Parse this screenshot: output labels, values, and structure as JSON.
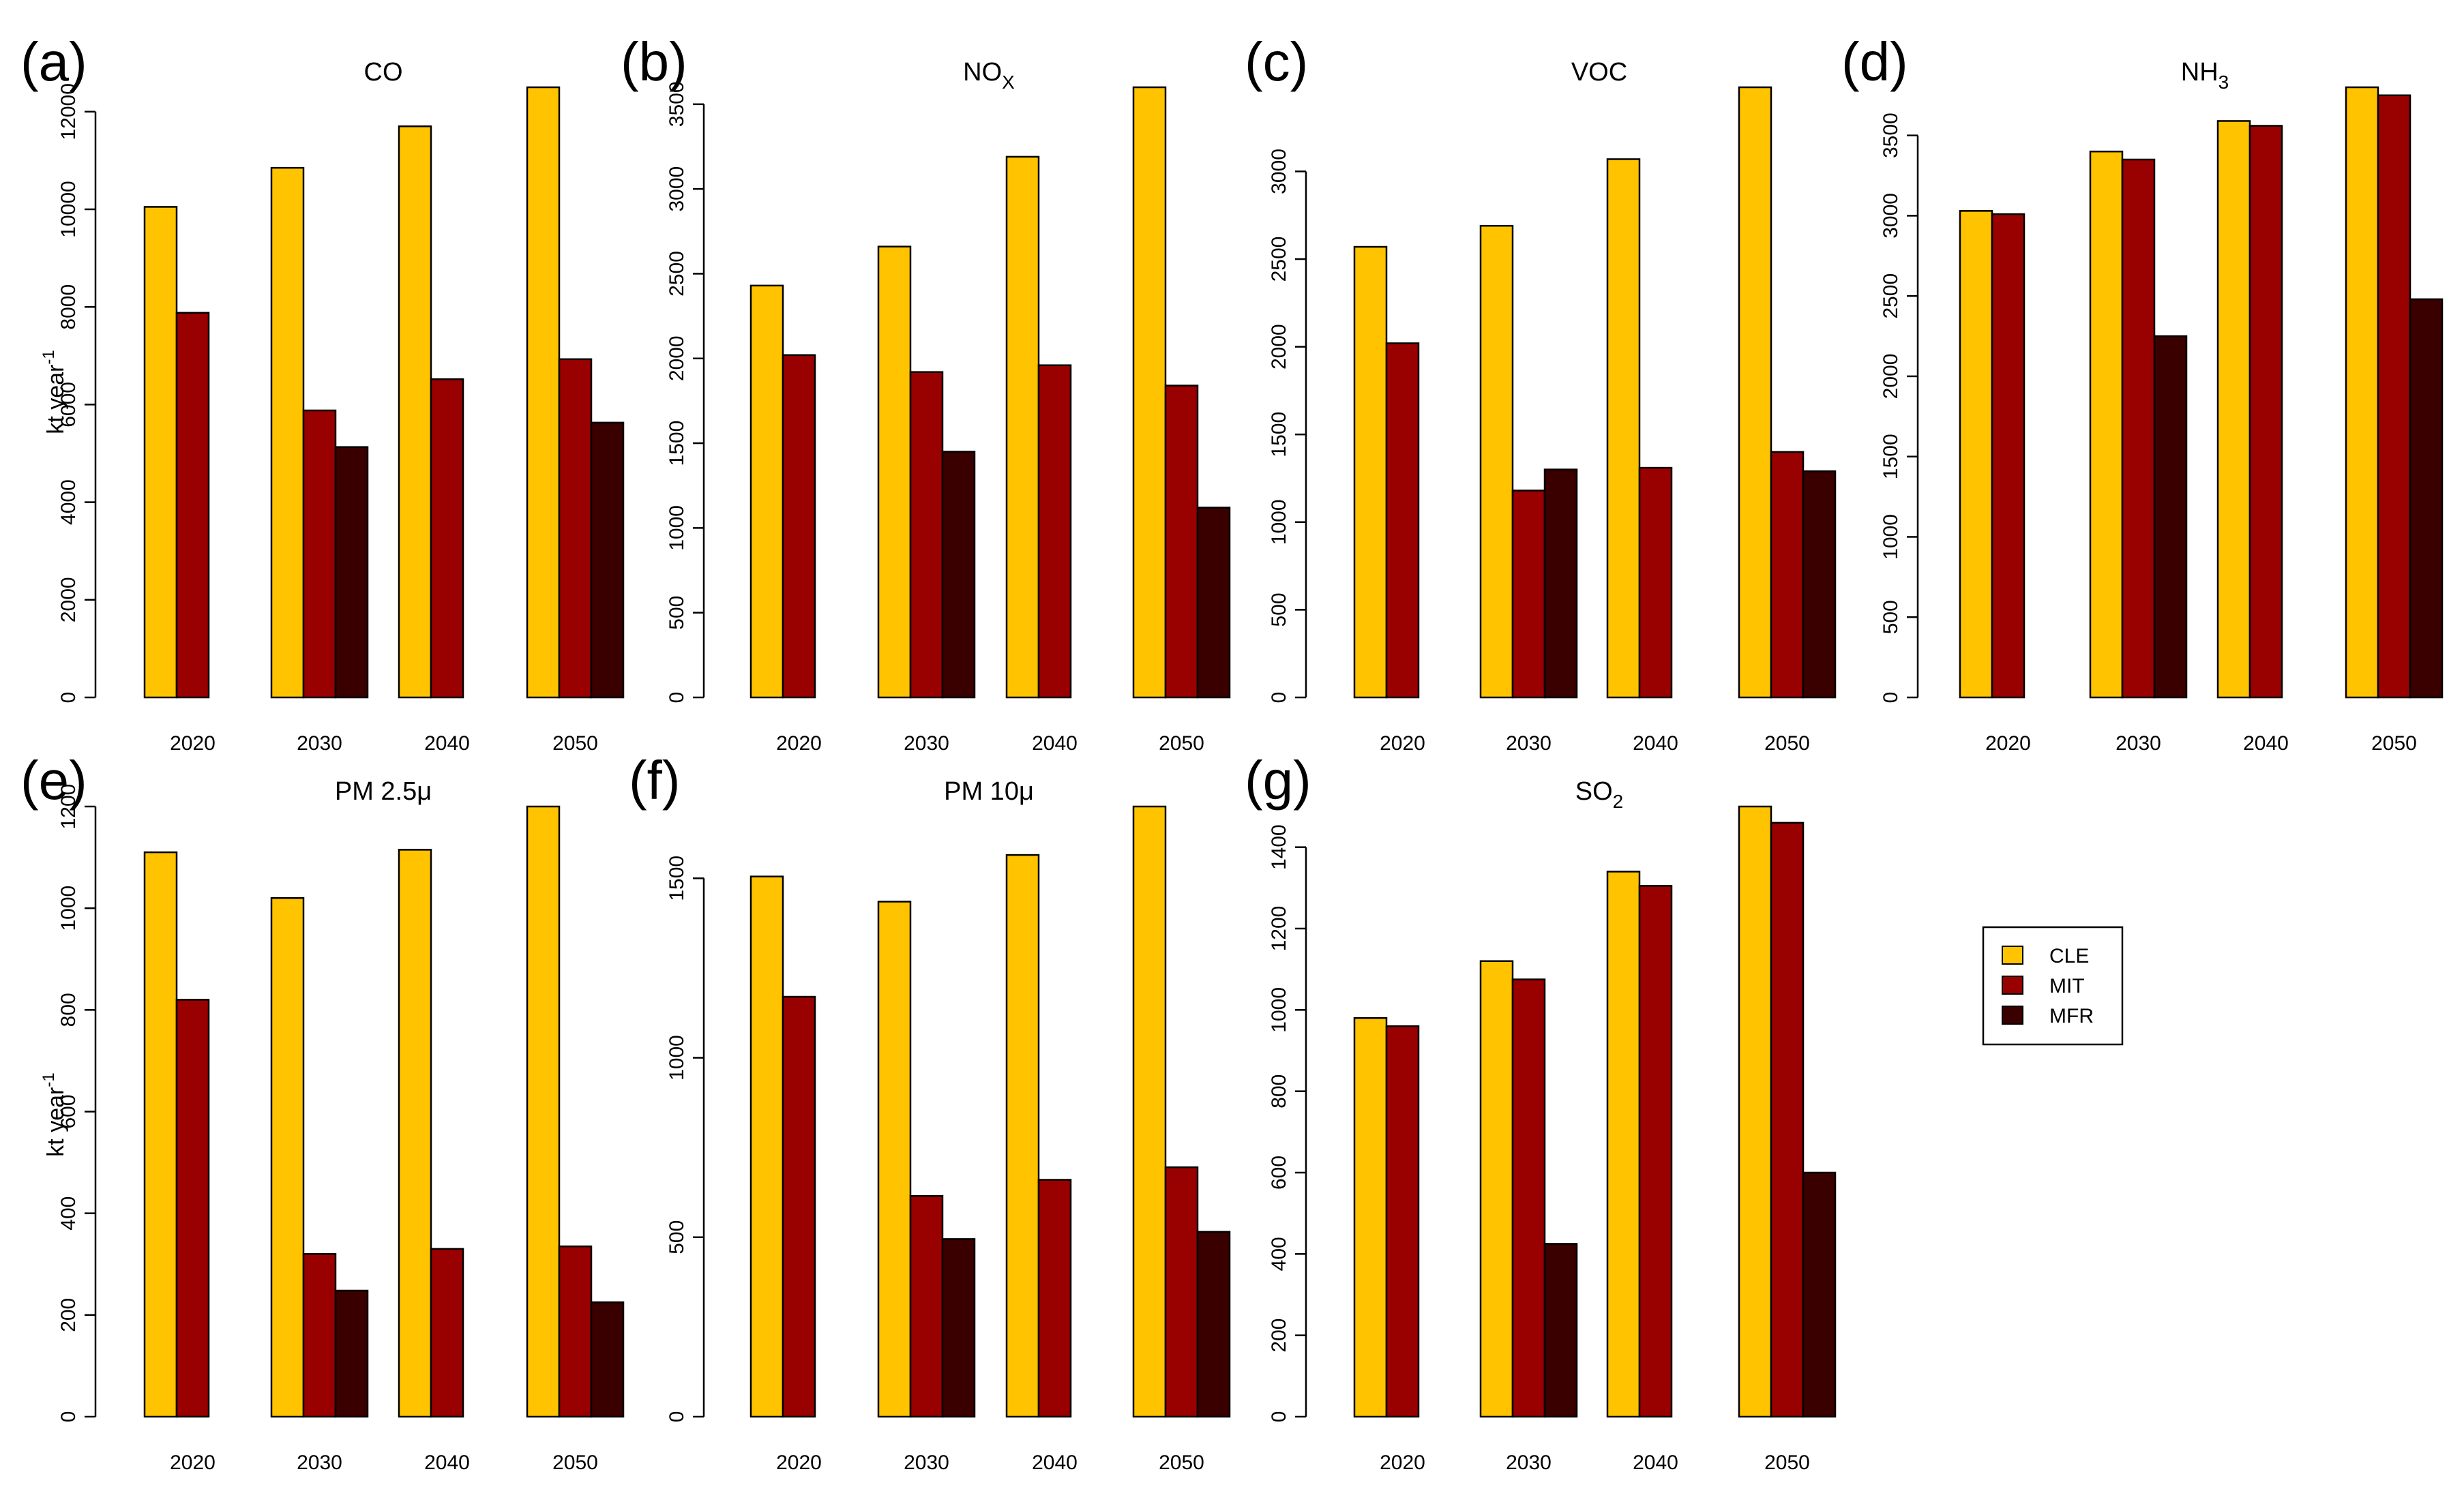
{
  "legend": [
    {
      "label": "CLE",
      "color": "#FFC300"
    },
    {
      "label": "MIT",
      "color": "#990000"
    },
    {
      "label": "MFR",
      "color": "#3A0000"
    }
  ],
  "chart_data": [
    {
      "type": "bar",
      "panel": "(a)",
      "title": "CO",
      "title_sub": "",
      "ylabel": "kt year",
      "ylabel_sup": "-1",
      "categories": [
        "2020",
        "2030",
        "2040",
        "2050"
      ],
      "ylim": [
        0,
        12500
      ],
      "yticks": [
        0,
        2000,
        4000,
        6000,
        8000,
        10000,
        12000
      ],
      "series": [
        {
          "name": "CLE",
          "values": [
            10050,
            10850,
            11700,
            12500
          ]
        },
        {
          "name": "MIT",
          "values": [
            7880,
            5880,
            6520,
            6930
          ]
        },
        {
          "name": "MFR",
          "values": [
            null,
            5130,
            null,
            5630
          ]
        }
      ]
    },
    {
      "type": "bar",
      "panel": "(b)",
      "title": "NO",
      "title_sub": "X",
      "ylabel": "",
      "ylabel_sup": "",
      "categories": [
        "2020",
        "2030",
        "2040",
        "2050"
      ],
      "ylim": [
        0,
        3600
      ],
      "yticks": [
        0,
        500,
        1000,
        1500,
        2000,
        2500,
        3000,
        3500
      ],
      "series": [
        {
          "name": "CLE",
          "values": [
            2430,
            2660,
            3190,
            3600
          ]
        },
        {
          "name": "MIT",
          "values": [
            2020,
            1920,
            1960,
            1840
          ]
        },
        {
          "name": "MFR",
          "values": [
            null,
            1450,
            null,
            1120
          ]
        }
      ]
    },
    {
      "type": "bar",
      "panel": "(c)",
      "title": "VOC",
      "title_sub": "",
      "ylabel": "",
      "ylabel_sup": "",
      "categories": [
        "2020",
        "2030",
        "2040",
        "2050"
      ],
      "ylim": [
        0,
        3480
      ],
      "yticks": [
        0,
        500,
        1000,
        1500,
        2000,
        2500,
        3000
      ],
      "series": [
        {
          "name": "CLE",
          "values": [
            2570,
            2690,
            3070,
            3480
          ]
        },
        {
          "name": "MIT",
          "values": [
            2020,
            1180,
            1310,
            1400
          ]
        },
        {
          "name": "MFR",
          "values": [
            null,
            1300,
            null,
            1290
          ]
        }
      ]
    },
    {
      "type": "bar",
      "panel": "(d)",
      "title": "NH",
      "title_sub": "3",
      "ylabel": "",
      "ylabel_sup": "",
      "categories": [
        "2020",
        "2030",
        "2040",
        "2050"
      ],
      "ylim": [
        0,
        3800
      ],
      "yticks": [
        0,
        500,
        1000,
        1500,
        2000,
        2500,
        3000,
        3500
      ],
      "series": [
        {
          "name": "CLE",
          "values": [
            3030,
            3400,
            3590,
            3800
          ]
        },
        {
          "name": "MIT",
          "values": [
            3010,
            3350,
            3560,
            3750
          ]
        },
        {
          "name": "MFR",
          "values": [
            null,
            2250,
            null,
            2480
          ]
        }
      ]
    },
    {
      "type": "bar",
      "panel": "(e)",
      "title": "PM 2.5μ",
      "title_sub": "",
      "ylabel": "kt year",
      "ylabel_sup": "-1",
      "categories": [
        "2020",
        "2030",
        "2040",
        "2050"
      ],
      "ylim": [
        0,
        1200
      ],
      "yticks": [
        0,
        200,
        400,
        600,
        800,
        1000,
        1200
      ],
      "series": [
        {
          "name": "CLE",
          "values": [
            1110,
            1020,
            1115,
            1200
          ]
        },
        {
          "name": "MIT",
          "values": [
            820,
            320,
            330,
            335
          ]
        },
        {
          "name": "MFR",
          "values": [
            null,
            248,
            null,
            225
          ]
        }
      ]
    },
    {
      "type": "bar",
      "panel": "(f)",
      "title": "PM 10μ",
      "title_sub": "",
      "ylabel": "",
      "ylabel_sup": "",
      "categories": [
        "2020",
        "2030",
        "2040",
        "2050"
      ],
      "ylim": [
        0,
        1700
      ],
      "yticks": [
        0,
        500,
        1000,
        1500
      ],
      "series": [
        {
          "name": "CLE",
          "values": [
            1505,
            1435,
            1565,
            1700
          ]
        },
        {
          "name": "MIT",
          "values": [
            1170,
            615,
            660,
            695
          ]
        },
        {
          "name": "MFR",
          "values": [
            null,
            495,
            null,
            515
          ]
        }
      ]
    },
    {
      "type": "bar",
      "panel": "(g)",
      "title": "SO",
      "title_sub": "2",
      "ylabel": "",
      "ylabel_sup": "",
      "categories": [
        "2020",
        "2030",
        "2040",
        "2050"
      ],
      "ylim": [
        0,
        1500
      ],
      "yticks": [
        0,
        200,
        400,
        600,
        800,
        1000,
        1200,
        1400
      ],
      "series": [
        {
          "name": "CLE",
          "values": [
            980,
            1120,
            1340,
            1500
          ]
        },
        {
          "name": "MIT",
          "values": [
            960,
            1075,
            1305,
            1460
          ]
        },
        {
          "name": "MFR",
          "values": [
            null,
            425,
            null,
            600
          ]
        }
      ]
    }
  ]
}
